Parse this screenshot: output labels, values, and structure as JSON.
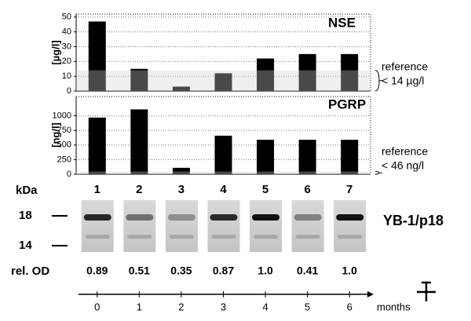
{
  "chart_data": [
    {
      "type": "bar",
      "title": "NSE",
      "y_label": "[µg/l]",
      "color": "#000000",
      "values": [
        47,
        15,
        3,
        12,
        22,
        25,
        25
      ],
      "ylim": [
        0,
        52
      ],
      "yticks": [
        0,
        10,
        20,
        30,
        40,
        50
      ],
      "grid": true,
      "reference": {
        "label": "reference",
        "limit_label": "< 14 µg/l",
        "value": 14
      }
    },
    {
      "type": "bar",
      "title": "PGRP",
      "y_label": "[ng/l]",
      "color": "#000000",
      "categories": [
        "1",
        "2",
        "3",
        "4",
        "5",
        "6",
        "7"
      ],
      "values": [
        970,
        1110,
        110,
        660,
        590,
        590,
        590
      ],
      "ylim": [
        0,
        1330
      ],
      "yticks": [
        0,
        250,
        500,
        750,
        1000
      ],
      "grid": true,
      "reference": {
        "label": "reference",
        "limit_label": "< 46 ng/l",
        "value": 46
      }
    }
  ],
  "blot": {
    "unit_label": "kDa",
    "markers": [
      "18",
      "14"
    ],
    "name": "YB-1/p18",
    "od_label": "rel. OD",
    "od_values": [
      0.89,
      0.51,
      0.35,
      0.87,
      1.0,
      0.41,
      1.0
    ],
    "od_value_labels": [
      "0.89",
      "0.51",
      "0.35",
      "0.87",
      "1.0",
      "0.41",
      "1.0"
    ]
  },
  "timeline": {
    "ticks": [
      0,
      1,
      2,
      3,
      4,
      5,
      6
    ],
    "label": "months"
  }
}
